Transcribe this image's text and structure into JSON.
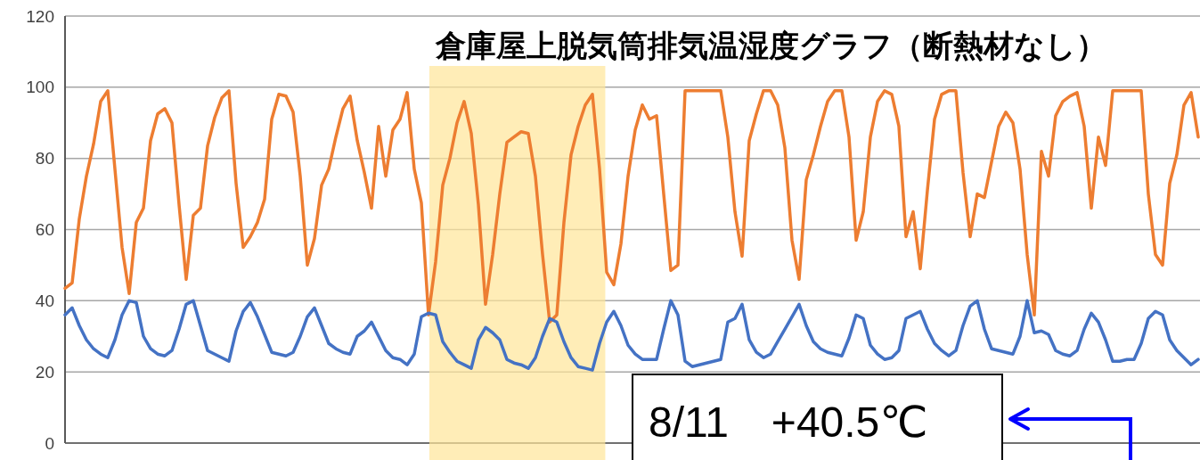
{
  "chart_data": {
    "type": "line",
    "title": "倉庫屋上脱気筒排気温湿度グラフ（断熱材なし）",
    "ylim": [
      0,
      120
    ],
    "yticks": [
      0,
      20,
      40,
      60,
      80,
      100,
      120
    ],
    "grid": "y",
    "tick_labels": "y",
    "categories": [
      null,
      null,
      null,
      null,
      null,
      null,
      null,
      null,
      null,
      null,
      null,
      null,
      null,
      null,
      null,
      null,
      null,
      null,
      null,
      null,
      null,
      null,
      null,
      null,
      null,
      null,
      null,
      null,
      null,
      null,
      null,
      null,
      null,
      null,
      null,
      null,
      null,
      null,
      null,
      null,
      null,
      null,
      null,
      null,
      null,
      null,
      null,
      null,
      null,
      null,
      null,
      null,
      null,
      null,
      null,
      null,
      null,
      null,
      null,
      null,
      null,
      null,
      null,
      null,
      null,
      null,
      null,
      null,
      null,
      null,
      null,
      null,
      null,
      null,
      null,
      null,
      null,
      null,
      null,
      null,
      null,
      null,
      null,
      null,
      null,
      null,
      null,
      null,
      null,
      null,
      null,
      null,
      null,
      null,
      null,
      null,
      null,
      null,
      null,
      null,
      null,
      null,
      null,
      null,
      null,
      null,
      null,
      null,
      null,
      null,
      null,
      null,
      null,
      null,
      null,
      null,
      null,
      null,
      null,
      null,
      null,
      null,
      null,
      null,
      null,
      null,
      null,
      null,
      null,
      null,
      null,
      null,
      null,
      null,
      null,
      null,
      null,
      null,
      null,
      null,
      null,
      null,
      null,
      null,
      null,
      null,
      null,
      null,
      null,
      null,
      null,
      null,
      null,
      null,
      null,
      null,
      null,
      null,
      null,
      null
    ],
    "annotations": [
      "8/11　+40.5℃"
    ],
    "series": [
      {
        "color": "#ed7d31",
        "values": [
          43.5,
          45,
          63,
          75,
          84,
          96,
          99,
          77,
          55,
          42,
          62,
          66,
          85,
          92.5,
          94,
          90,
          67,
          46,
          64,
          66,
          83.5,
          91.5,
          97,
          99,
          73,
          55,
          58,
          62,
          68.5,
          91,
          98,
          97.5,
          93,
          75,
          50,
          57.5,
          72.5,
          77,
          86,
          94,
          97.5,
          85,
          76,
          66,
          89,
          75,
          88,
          91,
          98.5,
          77,
          67.5,
          36,
          51,
          72.5,
          80,
          90,
          96,
          87,
          67,
          39,
          53,
          70,
          84.5,
          86,
          87.5,
          87,
          75,
          53,
          34,
          36,
          62,
          81,
          89,
          95,
          98,
          77,
          48,
          44.5,
          56,
          75,
          88,
          95,
          91,
          92,
          70,
          48.5,
          50,
          99,
          99,
          99,
          99,
          99,
          99,
          86,
          65,
          52.5,
          85,
          92.5,
          99,
          99,
          95,
          83,
          57,
          46,
          74,
          81,
          89,
          96,
          99,
          99,
          86,
          57,
          65,
          86,
          96,
          99,
          98,
          89,
          58,
          65,
          49,
          71,
          91,
          98,
          99,
          99,
          76,
          58,
          70,
          69,
          79,
          89,
          93,
          90,
          77,
          53,
          36,
          82,
          75,
          92,
          96,
          97.5,
          98.5,
          89,
          66,
          86,
          78,
          99,
          99,
          99,
          99,
          99,
          70,
          53,
          50,
          73,
          81,
          95,
          98.5,
          86
        ]
      },
      {
        "color": "#4472c4",
        "values": [
          36,
          38,
          33,
          29,
          26.5,
          25,
          24,
          29,
          36,
          40,
          39.5,
          30,
          26.5,
          25,
          24.5,
          26,
          32,
          39,
          40,
          33,
          26,
          25,
          24,
          23,
          31.5,
          37,
          39.5,
          35.5,
          30.5,
          25.5,
          25,
          24.5,
          25.5,
          30,
          35.5,
          38,
          33,
          28,
          26.5,
          25.5,
          25,
          30,
          31.5,
          34,
          30,
          26,
          24,
          23.5,
          22,
          25,
          35.5,
          36.5,
          36,
          28.5,
          25.5,
          23,
          22,
          21,
          29,
          32.5,
          31,
          29,
          23.5,
          22.5,
          22,
          21,
          24,
          30,
          35,
          34,
          28.5,
          24,
          21.5,
          21,
          20.5,
          28,
          34,
          37,
          33,
          27.5,
          25,
          23.5,
          23.5,
          23.5,
          32,
          40,
          36,
          23,
          21.5,
          22,
          22.5,
          23,
          23.5,
          34,
          35,
          39,
          29,
          25.5,
          24,
          25,
          28.5,
          32,
          35.5,
          39,
          33,
          28.5,
          26.5,
          25.5,
          25,
          24.5,
          29.5,
          36,
          35,
          27.5,
          25,
          23.5,
          24,
          26,
          35,
          36,
          37,
          32,
          28,
          26,
          24.5,
          26,
          33,
          38.5,
          40,
          32,
          26.5,
          26,
          25.5,
          25,
          30,
          40,
          31,
          31.5,
          30.5,
          26,
          25,
          24.5,
          26,
          32,
          36.5,
          34,
          29,
          23,
          23,
          23.5,
          23.5,
          28,
          35,
          37,
          36,
          29,
          26,
          24,
          22,
          23.5
        ]
      }
    ]
  }
}
